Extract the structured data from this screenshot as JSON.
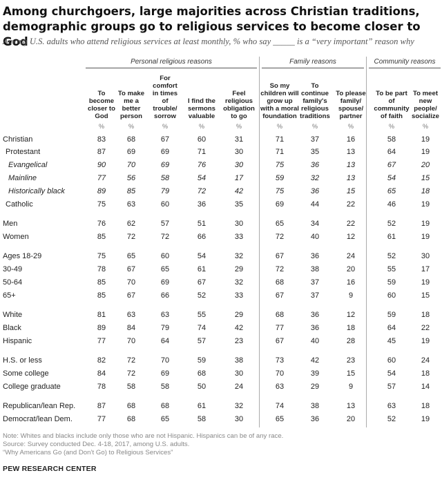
{
  "title": "Among churchgoers, large majorities across Christian traditions, demographic groups go to religious services to become closer to God",
  "subtitle": "Among U.S. adults who attend religious services at least monthly, % who say _____ is a “very important” reason why",
  "sections": {
    "personal": "Personal religious reasons",
    "family": "Family reasons",
    "community": "Community reasons"
  },
  "columns": [
    "To become closer to God",
    "To make me a better person",
    "For comfort in times of trouble/ sorrow",
    "I find the sermons valuable",
    "Feel religious obligation to go",
    "So my children will grow up with a moral foundation",
    "To continue family's religious traditions",
    "To please family/ spouse/ partner",
    "To be part of community of faith",
    "To meet new people/ socialize"
  ],
  "pct_symbol": "%",
  "rows": [
    {
      "label": "Christian",
      "values": [
        "83",
        "68",
        "67",
        "60",
        "31",
        "71",
        "37",
        "16",
        "58",
        "19"
      ],
      "indent": 0,
      "italic": false
    },
    {
      "label": "Protestant",
      "values": [
        "87",
        "69",
        "69",
        "71",
        "30",
        "71",
        "35",
        "13",
        "64",
        "19"
      ],
      "indent": 1,
      "italic": false
    },
    {
      "label": "Evangelical",
      "values": [
        "90",
        "70",
        "69",
        "76",
        "30",
        "75",
        "36",
        "13",
        "67",
        "20"
      ],
      "indent": 2,
      "italic": true
    },
    {
      "label": "Mainline",
      "values": [
        "77",
        "56",
        "58",
        "54",
        "17",
        "59",
        "32",
        "13",
        "54",
        "15"
      ],
      "indent": 2,
      "italic": true
    },
    {
      "label": "Historically black",
      "values": [
        "89",
        "85",
        "79",
        "72",
        "42",
        "75",
        "36",
        "15",
        "65",
        "18"
      ],
      "indent": 2,
      "italic": true
    },
    {
      "label": "Catholic",
      "values": [
        "75",
        "63",
        "60",
        "36",
        "35",
        "69",
        "44",
        "22",
        "46",
        "19"
      ],
      "indent": 1,
      "italic": false
    },
    {
      "label": "Men",
      "values": [
        "76",
        "62",
        "57",
        "51",
        "30",
        "65",
        "34",
        "22",
        "52",
        "19"
      ],
      "indent": 0,
      "italic": false
    },
    {
      "label": "Women",
      "values": [
        "85",
        "72",
        "72",
        "66",
        "33",
        "72",
        "40",
        "12",
        "61",
        "19"
      ],
      "indent": 0,
      "italic": false
    },
    {
      "label": "Ages 18-29",
      "values": [
        "75",
        "65",
        "60",
        "54",
        "32",
        "67",
        "36",
        "24",
        "52",
        "30"
      ],
      "indent": 0,
      "italic": false
    },
    {
      "label": "30-49",
      "values": [
        "78",
        "67",
        "65",
        "61",
        "29",
        "72",
        "38",
        "20",
        "55",
        "17"
      ],
      "indent": 0,
      "italic": false
    },
    {
      "label": "50-64",
      "values": [
        "85",
        "70",
        "69",
        "67",
        "32",
        "68",
        "37",
        "16",
        "59",
        "19"
      ],
      "indent": 0,
      "italic": false
    },
    {
      "label": "65+",
      "values": [
        "85",
        "67",
        "66",
        "52",
        "33",
        "67",
        "37",
        "9",
        "60",
        "15"
      ],
      "indent": 0,
      "italic": false
    },
    {
      "label": "White",
      "values": [
        "81",
        "63",
        "63",
        "55",
        "29",
        "68",
        "36",
        "12",
        "59",
        "18"
      ],
      "indent": 0,
      "italic": false
    },
    {
      "label": "Black",
      "values": [
        "89",
        "84",
        "79",
        "74",
        "42",
        "77",
        "36",
        "18",
        "64",
        "22"
      ],
      "indent": 0,
      "italic": false
    },
    {
      "label": "Hispanic",
      "values": [
        "77",
        "70",
        "64",
        "57",
        "23",
        "67",
        "40",
        "28",
        "45",
        "19"
      ],
      "indent": 0,
      "italic": false
    },
    {
      "label": "H.S. or less",
      "values": [
        "82",
        "72",
        "70",
        "59",
        "38",
        "73",
        "42",
        "23",
        "60",
        "24"
      ],
      "indent": 0,
      "italic": false
    },
    {
      "label": "Some college",
      "values": [
        "84",
        "72",
        "69",
        "68",
        "30",
        "70",
        "39",
        "15",
        "54",
        "18"
      ],
      "indent": 0,
      "italic": false
    },
    {
      "label": "College graduate",
      "values": [
        "78",
        "58",
        "58",
        "50",
        "24",
        "63",
        "29",
        "9",
        "57",
        "14"
      ],
      "indent": 0,
      "italic": false
    },
    {
      "label": "Republican/lean Rep.",
      "values": [
        "87",
        "68",
        "68",
        "61",
        "32",
        "74",
        "38",
        "13",
        "63",
        "18"
      ],
      "indent": 0,
      "italic": false
    },
    {
      "label": "Democrat/lean Dem.",
      "values": [
        "77",
        "68",
        "65",
        "58",
        "30",
        "65",
        "36",
        "20",
        "52",
        "19"
      ],
      "indent": 0,
      "italic": false
    }
  ],
  "notes": [
    "Note: Whites and blacks include only those who are not Hispanic. Hispanics can be of any race.",
    "Source: Survey conducted Dec. 4-18, 2017, among U.S. adults.",
    "“Why Americans Go (and Don’t Go) to Religious Services”"
  ],
  "brand": "PEW RESEARCH CENTER"
}
